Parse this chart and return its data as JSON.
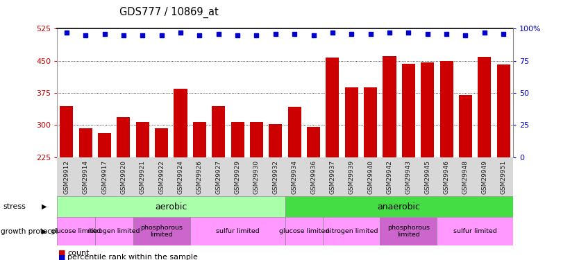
{
  "title": "GDS777 / 10869_at",
  "samples": [
    "GSM29912",
    "GSM29914",
    "GSM29917",
    "GSM29920",
    "GSM29921",
    "GSM29922",
    "GSM29924",
    "GSM29926",
    "GSM29927",
    "GSM29929",
    "GSM29930",
    "GSM29932",
    "GSM29934",
    "GSM29936",
    "GSM29937",
    "GSM29939",
    "GSM29940",
    "GSM29942",
    "GSM29943",
    "GSM29945",
    "GSM29946",
    "GSM29948",
    "GSM29949",
    "GSM29951"
  ],
  "counts": [
    345,
    292,
    282,
    318,
    308,
    292,
    384,
    308,
    345,
    307,
    307,
    303,
    343,
    296,
    458,
    388,
    388,
    460,
    443,
    447,
    450,
    370,
    459,
    442
  ],
  "percentiles": [
    97,
    95,
    96,
    95,
    95,
    95,
    97,
    95,
    96,
    95,
    95,
    96,
    96,
    95,
    97,
    96,
    96,
    97,
    97,
    96,
    96,
    95,
    97,
    96
  ],
  "ylim_left": [
    225,
    525
  ],
  "yticks_left": [
    225,
    300,
    375,
    450,
    525
  ],
  "ylim_right": [
    0,
    100
  ],
  "yticks_right": [
    0,
    25,
    50,
    75,
    100
  ],
  "bar_color": "#cc0000",
  "dot_color": "#0000cc",
  "stress_aerobic_color": "#aaffaa",
  "stress_anaerobic_color": "#44dd44",
  "growth_colors": [
    "#ff99ff",
    "#ff99ff",
    "#cc66cc",
    "#ff99ff",
    "#ff99ff",
    "#ff99ff",
    "#cc66cc",
    "#ff99ff"
  ],
  "growth_labels": [
    "glucose limited",
    "nitrogen limited",
    "phosphorous\nlimited",
    "sulfur limited",
    "glucose limited",
    "nitrogen limited",
    "phosphorous\nlimited",
    "sulfur limited"
  ],
  "growth_starts": [
    0,
    2,
    4,
    7,
    12,
    14,
    17,
    20
  ],
  "growth_ends": [
    2,
    4,
    7,
    12,
    14,
    17,
    20,
    24
  ],
  "hgrid_values": [
    300,
    375,
    450
  ]
}
